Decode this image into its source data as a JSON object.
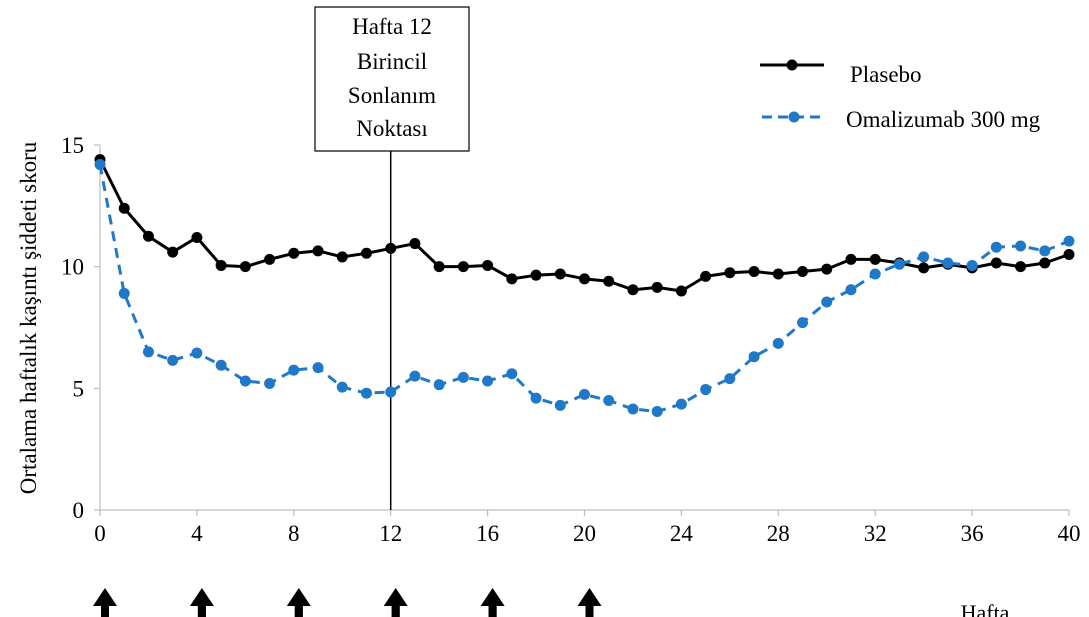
{
  "chart_data": {
    "type": "line",
    "xlabel": "Hafta",
    "ylabel": "Ortalama haftalık kaşıntı şiddeti skoru",
    "xlim": [
      0,
      40
    ],
    "ylim": [
      0,
      15
    ],
    "xticks": [
      0,
      4,
      8,
      12,
      16,
      20,
      24,
      28,
      32,
      36,
      40
    ],
    "yticks": [
      0,
      5,
      10,
      15
    ],
    "grid": false,
    "legend_position": "top-right",
    "annotation": {
      "x": 12,
      "lines": [
        "Hafta 12",
        "Birincil",
        "Sonlanım",
        "Noktası"
      ]
    },
    "dose_arrows_at_weeks": [
      0,
      4,
      8,
      12,
      16,
      20
    ],
    "series": [
      {
        "name": "Plasebo",
        "color": "#000000",
        "style": "solid",
        "x": [
          0,
          1,
          2,
          3,
          4,
          5,
          6,
          7,
          8,
          9,
          10,
          11,
          12,
          13,
          14,
          15,
          16,
          17,
          18,
          19,
          20,
          21,
          22,
          23,
          24,
          25,
          26,
          27,
          28,
          29,
          30,
          31,
          32,
          33,
          34,
          35,
          36,
          37,
          38,
          39,
          40
        ],
        "values": [
          14.4,
          12.4,
          11.25,
          10.6,
          11.2,
          10.05,
          10.0,
          10.3,
          10.55,
          10.65,
          10.4,
          10.55,
          10.75,
          10.95,
          10.0,
          10.0,
          10.05,
          9.5,
          9.65,
          9.7,
          9.5,
          9.4,
          9.05,
          9.15,
          9.0,
          9.6,
          9.75,
          9.8,
          9.7,
          9.8,
          9.9,
          10.3,
          10.3,
          10.15,
          9.95,
          10.1,
          9.95,
          10.15,
          10.0,
          10.15,
          10.5
        ]
      },
      {
        "name": "Omalizumab 300 mg",
        "color": "#1f78c8",
        "style": "dashed",
        "x": [
          0,
          1,
          2,
          3,
          4,
          5,
          6,
          7,
          8,
          9,
          10,
          11,
          12,
          13,
          14,
          15,
          16,
          17,
          18,
          19,
          20,
          21,
          22,
          23,
          24,
          25,
          26,
          27,
          28,
          29,
          30,
          31,
          32,
          33,
          34,
          35,
          36,
          37,
          38,
          39,
          40
        ],
        "values": [
          14.2,
          8.9,
          6.5,
          6.15,
          6.45,
          5.95,
          5.3,
          5.2,
          5.75,
          5.85,
          5.05,
          4.8,
          4.85,
          5.5,
          5.15,
          5.45,
          5.3,
          5.6,
          4.6,
          4.3,
          4.75,
          4.5,
          4.15,
          4.05,
          4.35,
          4.95,
          5.4,
          6.3,
          6.85,
          7.7,
          8.55,
          9.05,
          9.7,
          10.1,
          10.4,
          10.15,
          10.05,
          10.8,
          10.85,
          10.65,
          11.05
        ]
      }
    ]
  }
}
